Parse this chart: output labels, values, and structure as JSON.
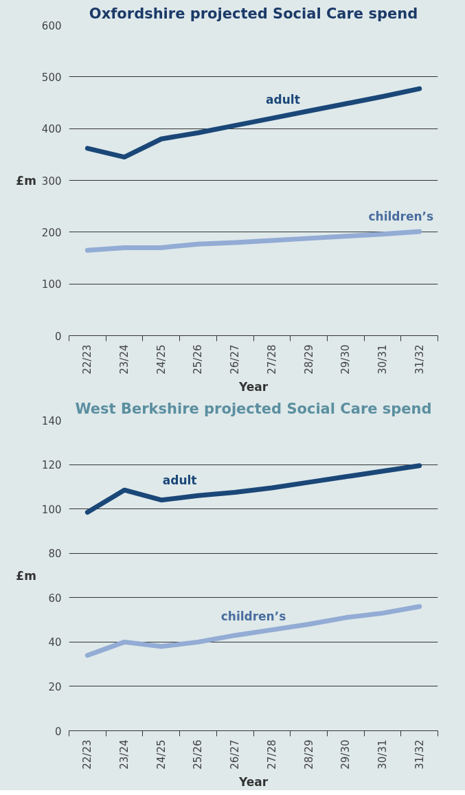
{
  "chart_data": [
    {
      "type": "line",
      "title": "Oxfordshire projected Social Care spend",
      "xlabel": "Year",
      "ylabel": "£m",
      "categories": [
        "22/23",
        "23/24",
        "24/25",
        "25/26",
        "26/27",
        "27/28",
        "28/29",
        "29/30",
        "30/31",
        "31/32"
      ],
      "ylim": [
        0,
        600
      ],
      "yticks": [
        0,
        100,
        200,
        300,
        400,
        500,
        600
      ],
      "grid": "y",
      "series": [
        {
          "name": "adult",
          "color": "#1a4778",
          "values": [
            362,
            345,
            380,
            392,
            406,
            420,
            434,
            448,
            462,
            477
          ]
        },
        {
          "name": "children’s",
          "color": "#93acd5",
          "values": [
            165,
            170,
            170,
            177,
            180,
            184,
            188,
            192,
            196,
            201
          ]
        }
      ]
    },
    {
      "type": "line",
      "title": "West Berkshire projected Social Care spend",
      "xlabel": "Year",
      "ylabel": "£m",
      "categories": [
        "22/23",
        "23/24",
        "24/25",
        "25/26",
        "26/27",
        "27/28",
        "28/29",
        "29/30",
        "30/31",
        "31/32"
      ],
      "ylim": [
        0,
        140
      ],
      "yticks": [
        0,
        20,
        40,
        60,
        80,
        100,
        120,
        140
      ],
      "grid": "y",
      "series": [
        {
          "name": "adult",
          "color": "#1a4778",
          "values": [
            98.5,
            108.5,
            104,
            106,
            107.5,
            109.5,
            112,
            114.5,
            117,
            119.5
          ]
        },
        {
          "name": "children’s",
          "color": "#93acd5",
          "values": [
            34,
            40,
            38,
            40,
            43,
            45.5,
            48,
            51,
            53,
            56
          ]
        }
      ]
    }
  ]
}
